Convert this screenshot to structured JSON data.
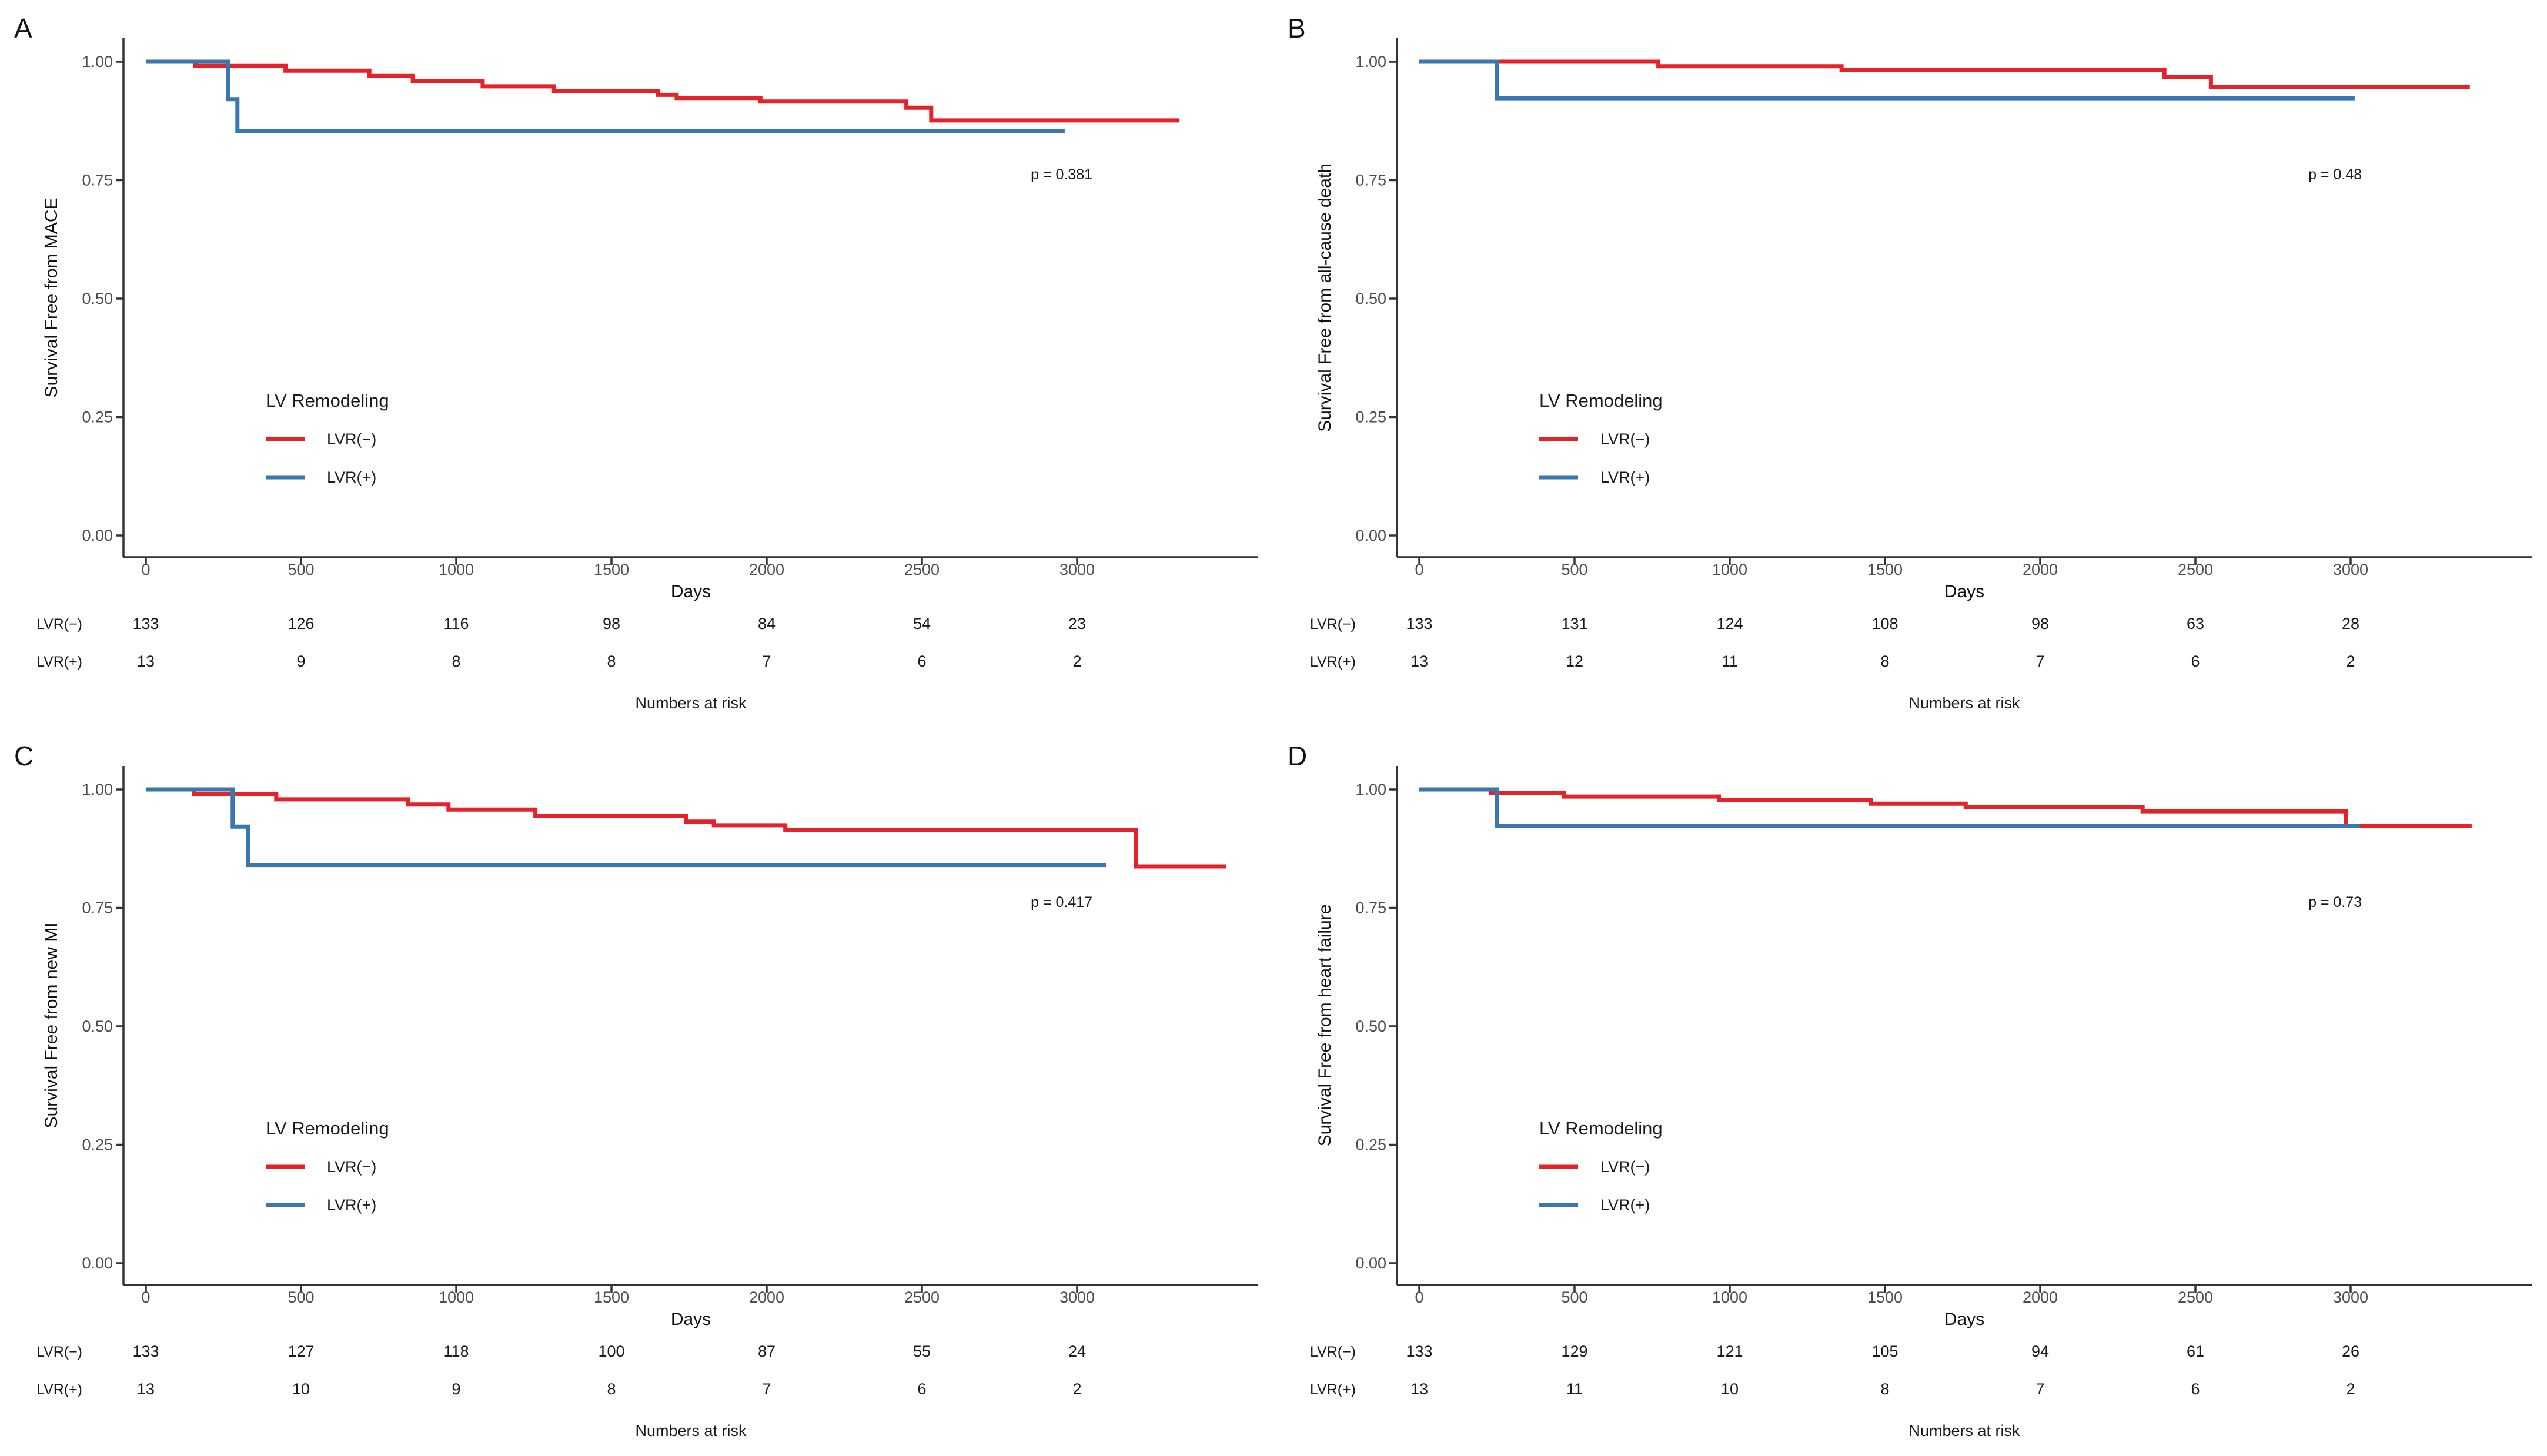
{
  "figure": {
    "background": "#ffffff",
    "xlabel": "Days",
    "risk_caption": "Numbers at risk",
    "legend_title": "LV Remodeling",
    "x_ticks": [
      0,
      500,
      1000,
      1500,
      2000,
      2500,
      3000
    ],
    "y_tick_labels": [
      "0.00",
      "0.25",
      "0.50",
      "0.75",
      "1.00"
    ],
    "colors": {
      "lvr_neg": "#E4222A",
      "lvr_pos": "#3A76B0",
      "axis_line": "#333333",
      "tick_text": "#4d4d4d",
      "title_text": "#111111",
      "body_text": "#1a1a1a"
    }
  },
  "chart_data": [
    {
      "panel_label": "A",
      "type": "line",
      "subtype": "kaplan-meier-step",
      "title": "",
      "xlabel": "Days",
      "ylabel": "Survival Free from MACE",
      "xlim": [
        0,
        3450
      ],
      "ylim": [
        0,
        1.0
      ],
      "grid": false,
      "legend_position": "inside-lower-left",
      "p_value": "p = 0.381",
      "series": [
        {
          "name": "LVR(−)",
          "color_key": "lvr_neg",
          "steps": [
            [
              0,
              1.0
            ],
            [
              160,
              0.991
            ],
            [
              450,
              0.981
            ],
            [
              720,
              0.97
            ],
            [
              860,
              0.959
            ],
            [
              1085,
              0.948
            ],
            [
              1315,
              0.938
            ],
            [
              1650,
              0.93
            ],
            [
              1710,
              0.9235
            ],
            [
              1980,
              0.916
            ],
            [
              2450,
              0.903
            ],
            [
              2530,
              0.876
            ]
          ],
          "end_day": 3330
        },
        {
          "name": "LVR(+)",
          "color_key": "lvr_pos",
          "steps": [
            [
              0,
              1.0
            ],
            [
              265,
              0.921
            ],
            [
              295,
              0.853
            ]
          ],
          "end_day": 2960
        }
      ],
      "risk_table": {
        "rows": [
          {
            "label": "LVR(−)",
            "values": [
              133,
              126,
              116,
              98,
              84,
              54,
              23
            ]
          },
          {
            "label": "LVR(+)",
            "values": [
              13,
              9,
              8,
              8,
              7,
              6,
              2
            ]
          }
        ]
      }
    },
    {
      "panel_label": "B",
      "type": "line",
      "subtype": "kaplan-meier-step",
      "title": "",
      "xlabel": "Days",
      "ylabel": "Survival Free from all-cause death",
      "xlim": [
        0,
        3450
      ],
      "ylim": [
        0,
        1.0
      ],
      "grid": false,
      "legend_position": "inside-lower-left",
      "p_value": "p = 0.48",
      "series": [
        {
          "name": "LVR(−)",
          "color_key": "lvr_neg",
          "steps": [
            [
              0,
              1.0
            ],
            [
              770,
              0.9905
            ],
            [
              1360,
              0.982
            ],
            [
              2400,
              0.9675
            ],
            [
              2550,
              0.947
            ]
          ],
          "end_day": 3384
        },
        {
          "name": "LVR(+)",
          "color_key": "lvr_pos",
          "steps": [
            [
              0,
              1.0
            ],
            [
              250,
              0.923
            ]
          ],
          "end_day": 3013
        }
      ],
      "risk_table": {
        "rows": [
          {
            "label": "LVR(−)",
            "values": [
              133,
              131,
              124,
              108,
              98,
              63,
              28
            ]
          },
          {
            "label": "LVR(+)",
            "values": [
              13,
              12,
              11,
              8,
              7,
              6,
              2
            ]
          }
        ]
      }
    },
    {
      "panel_label": "C",
      "type": "line",
      "subtype": "kaplan-meier-step",
      "title": "",
      "xlabel": "Days",
      "ylabel": "Survival Free from new MI",
      "xlim": [
        0,
        3450
      ],
      "ylim": [
        0,
        1.0
      ],
      "grid": false,
      "legend_position": "inside-lower-left",
      "p_value": "p = 0.417",
      "series": [
        {
          "name": "LVR(−)",
          "color_key": "lvr_neg",
          "steps": [
            [
              0,
              1.0
            ],
            [
              155,
              0.9895
            ],
            [
              420,
              0.979
            ],
            [
              845,
              0.968
            ],
            [
              975,
              0.9575
            ],
            [
              1255,
              0.9435
            ],
            [
              1740,
              0.932
            ],
            [
              1830,
              0.9245
            ],
            [
              2060,
              0.914
            ],
            [
              3190,
              0.8375
            ]
          ],
          "end_day": 3480
        },
        {
          "name": "LVR(+)",
          "color_key": "lvr_pos",
          "steps": [
            [
              0,
              1.0
            ],
            [
              280,
              0.9215
            ],
            [
              330,
              0.8405
            ]
          ],
          "end_day": 3093
        }
      ],
      "risk_table": {
        "rows": [
          {
            "label": "LVR(−)",
            "values": [
              133,
              127,
              118,
              100,
              87,
              55,
              24
            ]
          },
          {
            "label": "LVR(+)",
            "values": [
              13,
              10,
              9,
              8,
              7,
              6,
              2
            ]
          }
        ]
      }
    },
    {
      "panel_label": "D",
      "type": "line",
      "subtype": "kaplan-meier-step",
      "title": "",
      "xlabel": "Days",
      "ylabel": "Survival Free from heart failure",
      "xlim": [
        0,
        3450
      ],
      "ylim": [
        0,
        1.0
      ],
      "grid": false,
      "legend_position": "inside-lower-left",
      "p_value": "p = 0.73",
      "series": [
        {
          "name": "LVR(−)",
          "color_key": "lvr_neg",
          "steps": [
            [
              0,
              1.0
            ],
            [
              230,
              0.9925
            ],
            [
              465,
              0.985
            ],
            [
              965,
              0.9775
            ],
            [
              1455,
              0.97
            ],
            [
              1760,
              0.9625
            ],
            [
              2330,
              0.954
            ],
            [
              2985,
              0.9235
            ]
          ],
          "end_day": 3390
        },
        {
          "name": "LVR(+)",
          "color_key": "lvr_pos",
          "steps": [
            [
              0,
              1.0
            ],
            [
              250,
              0.923
            ]
          ],
          "end_day": 3030
        }
      ],
      "risk_table": {
        "rows": [
          {
            "label": "LVR(−)",
            "values": [
              133,
              129,
              121,
              105,
              94,
              61,
              26
            ]
          },
          {
            "label": "LVR(+)",
            "values": [
              13,
              11,
              10,
              8,
              7,
              6,
              2
            ]
          }
        ]
      }
    }
  ]
}
